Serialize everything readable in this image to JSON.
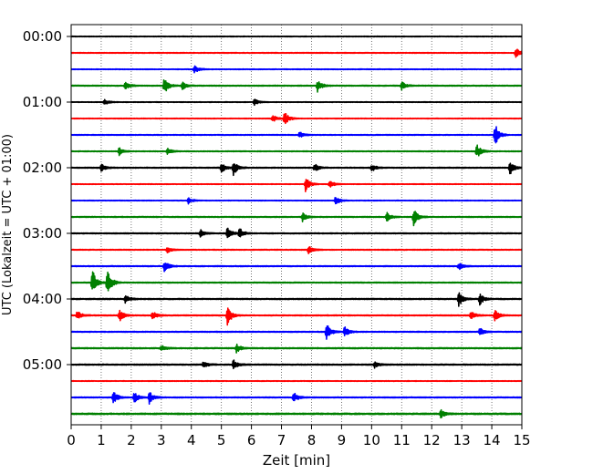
{
  "chart_data": {
    "type": "line",
    "title": "",
    "xlabel": "Zeit  [min]",
    "ylabel": "UTC (Lokalzeit = UTC + 01:00)",
    "xlim": [
      0,
      15
    ],
    "x_ticks": [
      "0",
      "1",
      "2",
      "3",
      "4",
      "5",
      "6",
      "7",
      "8",
      "9",
      "10",
      "11",
      "12",
      "13",
      "14",
      "15"
    ],
    "y_ticks": [
      "00:00",
      "01:00",
      "02:00",
      "03:00",
      "04:00",
      "05:00"
    ],
    "grid": "vertical-dotted",
    "trace_colors": [
      "#000000",
      "#ff0000",
      "#0000ff",
      "#008000"
    ],
    "traces": [
      {
        "start": "00:00",
        "color": "#000000",
        "noise": 0.25,
        "events": []
      },
      {
        "start": "00:15",
        "color": "#ff0000",
        "noise": 0.3,
        "events": [
          {
            "t": 14.8,
            "amp": 0.6
          }
        ]
      },
      {
        "start": "00:30",
        "color": "#0000ff",
        "noise": 0.25,
        "events": [
          {
            "t": 4.1,
            "amp": 0.5
          }
        ]
      },
      {
        "start": "00:45",
        "color": "#008000",
        "noise": 0.35,
        "events": [
          {
            "t": 1.8,
            "amp": 0.5
          },
          {
            "t": 3.1,
            "amp": 1.0
          },
          {
            "t": 3.7,
            "amp": 0.5
          },
          {
            "t": 8.2,
            "amp": 0.8
          },
          {
            "t": 11.0,
            "amp": 0.5
          }
        ]
      },
      {
        "start": "01:00",
        "color": "#000000",
        "noise": 0.25,
        "events": [
          {
            "t": 1.1,
            "amp": 0.4
          },
          {
            "t": 6.1,
            "amp": 0.4
          }
        ]
      },
      {
        "start": "01:15",
        "color": "#ff0000",
        "noise": 0.25,
        "events": [
          {
            "t": 6.7,
            "amp": 0.5
          },
          {
            "t": 7.1,
            "amp": 0.9
          }
        ]
      },
      {
        "start": "01:30",
        "color": "#0000ff",
        "noise": 0.3,
        "events": [
          {
            "t": 7.6,
            "amp": 0.4
          },
          {
            "t": 14.1,
            "amp": 1.5
          }
        ]
      },
      {
        "start": "01:45",
        "color": "#008000",
        "noise": 0.3,
        "events": [
          {
            "t": 1.6,
            "amp": 0.5
          },
          {
            "t": 3.2,
            "amp": 0.4
          },
          {
            "t": 13.5,
            "amp": 1.0
          }
        ]
      },
      {
        "start": "02:00",
        "color": "#000000",
        "noise": 0.35,
        "events": [
          {
            "t": 1.0,
            "amp": 0.5
          },
          {
            "t": 5.0,
            "amp": 0.6
          },
          {
            "t": 5.4,
            "amp": 0.9
          },
          {
            "t": 8.1,
            "amp": 0.5
          },
          {
            "t": 10.0,
            "amp": 0.5
          },
          {
            "t": 14.6,
            "amp": 0.9
          }
        ]
      },
      {
        "start": "02:15",
        "color": "#ff0000",
        "noise": 0.25,
        "events": [
          {
            "t": 7.8,
            "amp": 0.9
          },
          {
            "t": 8.6,
            "amp": 0.5
          }
        ]
      },
      {
        "start": "02:30",
        "color": "#0000ff",
        "noise": 0.25,
        "events": [
          {
            "t": 3.9,
            "amp": 0.4
          },
          {
            "t": 8.8,
            "amp": 0.5
          }
        ]
      },
      {
        "start": "02:45",
        "color": "#008000",
        "noise": 0.35,
        "events": [
          {
            "t": 7.7,
            "amp": 0.6
          },
          {
            "t": 10.5,
            "amp": 0.6
          },
          {
            "t": 11.4,
            "amp": 1.1
          }
        ]
      },
      {
        "start": "03:00",
        "color": "#000000",
        "noise": 0.35,
        "events": [
          {
            "t": 4.3,
            "amp": 0.5
          },
          {
            "t": 5.2,
            "amp": 0.8
          },
          {
            "t": 5.6,
            "amp": 0.7
          }
        ]
      },
      {
        "start": "03:15",
        "color": "#ff0000",
        "noise": 0.3,
        "events": [
          {
            "t": 3.2,
            "amp": 0.4
          },
          {
            "t": 7.9,
            "amp": 0.6
          }
        ]
      },
      {
        "start": "03:30",
        "color": "#0000ff",
        "noise": 0.35,
        "events": [
          {
            "t": 3.1,
            "amp": 0.8
          },
          {
            "t": 12.9,
            "amp": 0.5
          }
        ]
      },
      {
        "start": "03:45",
        "color": "#008000",
        "noise": 0.35,
        "events": [
          {
            "t": 0.7,
            "amp": 1.7
          },
          {
            "t": 1.2,
            "amp": 1.8
          }
        ]
      },
      {
        "start": "04:00",
        "color": "#000000",
        "noise": 0.4,
        "events": [
          {
            "t": 1.8,
            "amp": 0.6
          },
          {
            "t": 12.9,
            "amp": 0.9
          },
          {
            "t": 13.6,
            "amp": 0.8
          }
        ]
      },
      {
        "start": "04:15",
        "color": "#ff0000",
        "noise": 0.35,
        "events": [
          {
            "t": 0.2,
            "amp": 0.6
          },
          {
            "t": 1.6,
            "amp": 0.8
          },
          {
            "t": 2.7,
            "amp": 0.6
          },
          {
            "t": 5.2,
            "amp": 1.2
          },
          {
            "t": 13.3,
            "amp": 0.6
          },
          {
            "t": 14.1,
            "amp": 0.7
          }
        ]
      },
      {
        "start": "04:30",
        "color": "#0000ff",
        "noise": 0.35,
        "events": [
          {
            "t": 8.5,
            "amp": 1.1
          },
          {
            "t": 9.1,
            "amp": 0.7
          },
          {
            "t": 13.6,
            "amp": 0.5
          }
        ]
      },
      {
        "start": "04:45",
        "color": "#008000",
        "noise": 0.4,
        "events": [
          {
            "t": 3.0,
            "amp": 0.4
          },
          {
            "t": 5.5,
            "amp": 0.6
          }
        ]
      },
      {
        "start": "05:00",
        "color": "#000000",
        "noise": 0.4,
        "events": [
          {
            "t": 4.4,
            "amp": 0.4
          },
          {
            "t": 5.4,
            "amp": 0.6
          },
          {
            "t": 10.1,
            "amp": 0.4
          }
        ]
      },
      {
        "start": "05:15",
        "color": "#ff0000",
        "noise": 0.25,
        "events": []
      },
      {
        "start": "05:30",
        "color": "#0000ff",
        "noise": 0.35,
        "events": [
          {
            "t": 1.4,
            "amp": 0.9
          },
          {
            "t": 2.1,
            "amp": 0.8
          },
          {
            "t": 2.6,
            "amp": 0.8
          },
          {
            "t": 7.4,
            "amp": 0.7
          }
        ]
      },
      {
        "start": "05:45",
        "color": "#008000",
        "noise": 0.5,
        "events": [
          {
            "t": 12.3,
            "amp": 0.5
          }
        ]
      }
    ]
  }
}
